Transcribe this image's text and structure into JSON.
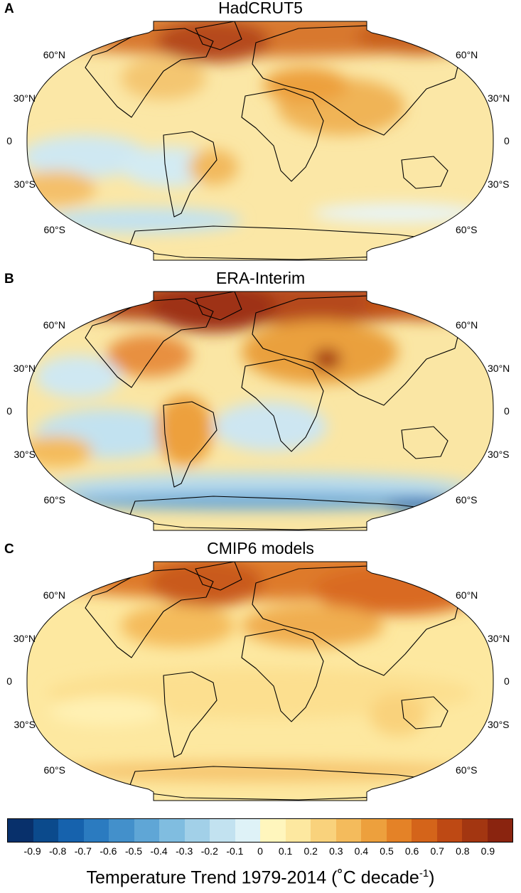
{
  "panels": [
    {
      "letter": "A",
      "title": "HadCRUT5",
      "dataset": "hadcrut"
    },
    {
      "letter": "B",
      "title": "ERA-Interim",
      "dataset": "era"
    },
    {
      "letter": "C",
      "title": "CMIP6 models",
      "dataset": "cmip"
    }
  ],
  "lat_labels": [
    "60°N",
    "30°N",
    "0",
    "30°S",
    "60°S"
  ],
  "colorbar": {
    "ticks": [
      "-0.9",
      "-0.8",
      "-0.7",
      "-0.6",
      "-0.5",
      "-0.4",
      "-0.3",
      "-0.2",
      "-0.1",
      "0",
      "0.1",
      "0.2",
      "0.3",
      "0.4",
      "0.5",
      "0.6",
      "0.7",
      "0.8",
      "0.9"
    ],
    "colors": [
      "#08306b",
      "#0b4a8c",
      "#1662ad",
      "#2b7bc0",
      "#4390cb",
      "#5fa6d6",
      "#80bde0",
      "#a2d0e8",
      "#c2e2f0",
      "#def2f7",
      "#fff6bd",
      "#fde8a0",
      "#f9d27c",
      "#f4bb5c",
      "#eda03d",
      "#e48227",
      "#d4641a",
      "#be4914",
      "#a33611",
      "#8a240f"
    ],
    "title_main": "Temperature Trend 1979-2014 (˚C decade",
    "title_sup": "-1",
    "title_end": ")"
  }
}
